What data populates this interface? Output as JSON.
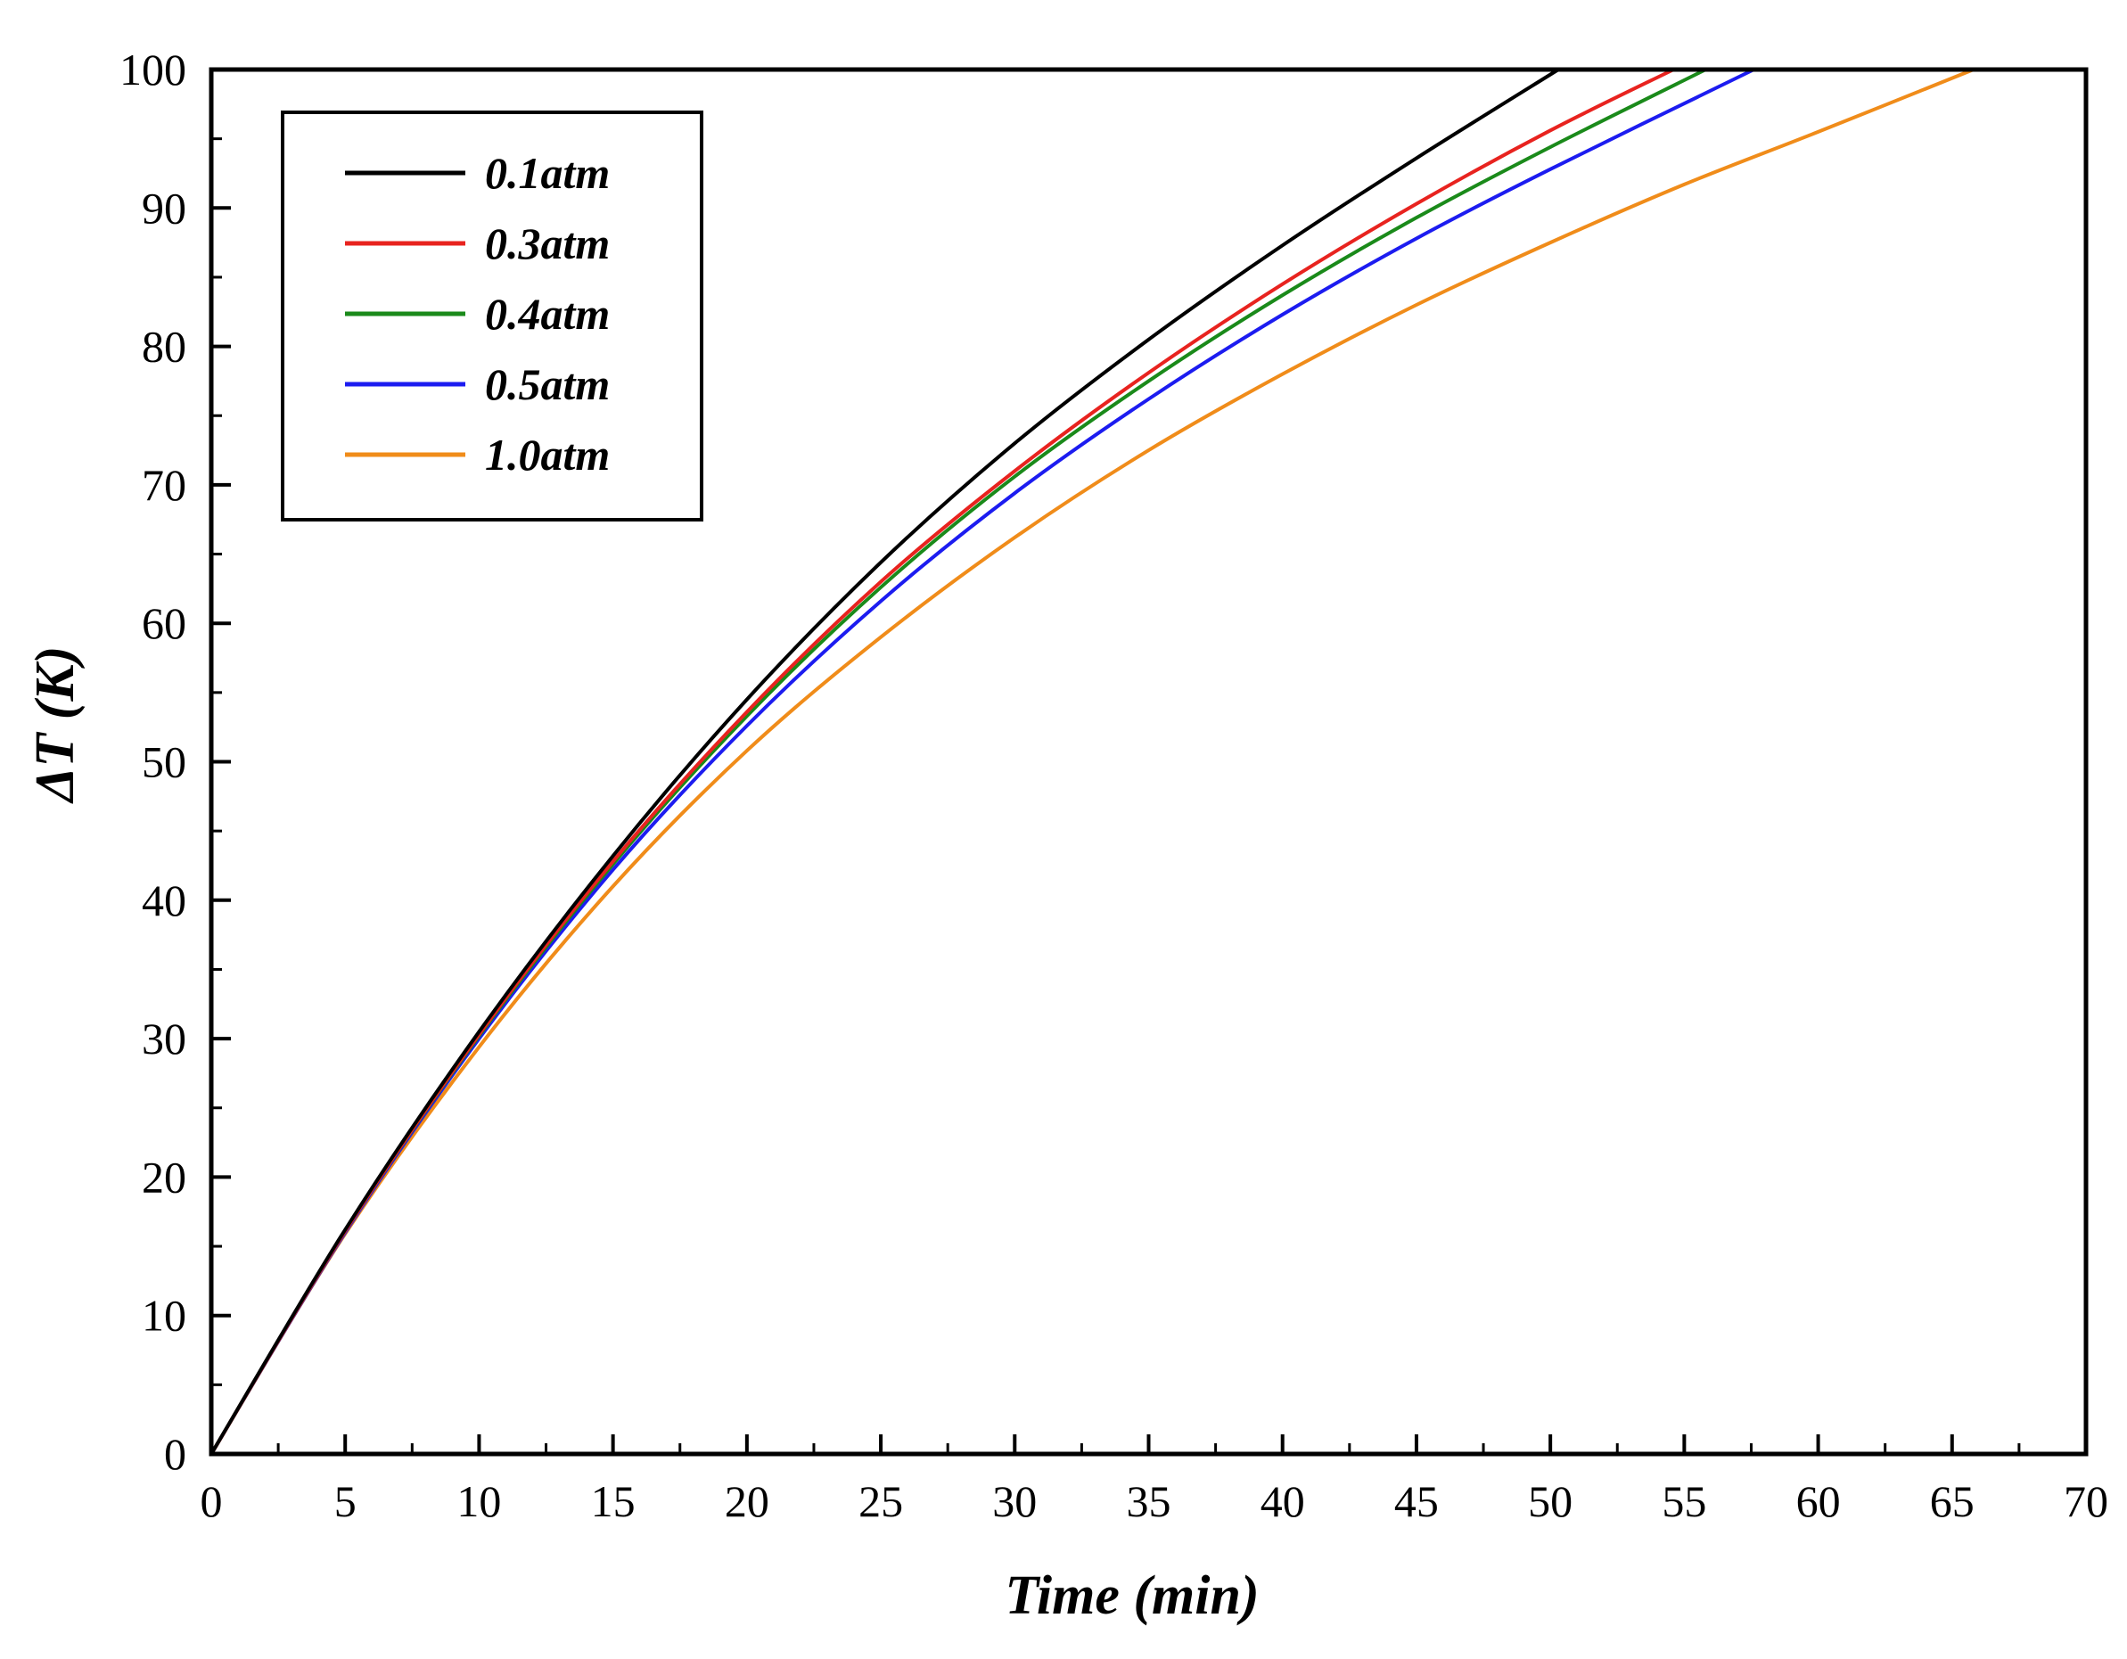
{
  "chart_data": {
    "type": "line",
    "title": "",
    "xlabel": "Time (min)",
    "ylabel": "ΔT (K)",
    "xlim": [
      0,
      70
    ],
    "ylim": [
      0,
      100
    ],
    "x_ticks": [
      0,
      5,
      10,
      15,
      20,
      25,
      30,
      35,
      40,
      45,
      50,
      55,
      60,
      65,
      70
    ],
    "y_ticks": [
      0,
      10,
      20,
      30,
      40,
      50,
      60,
      70,
      80,
      90,
      100
    ],
    "grid": false,
    "legend_position": "top-left",
    "series": [
      {
        "name": "0.1atm",
        "color": "#000000",
        "x": [
          0,
          5,
          10,
          15,
          20,
          25,
          30,
          35,
          40,
          45,
          50.3
        ],
        "y": [
          0,
          16.2,
          30.5,
          43.2,
          54.5,
          64.4,
          73.0,
          80.5,
          87.3,
          93.6,
          100
        ]
      },
      {
        "name": "0.3atm",
        "color": "#e8231f",
        "x": [
          0,
          5,
          10,
          15,
          20,
          25,
          30,
          35,
          40,
          45,
          50,
          54.6
        ],
        "y": [
          0,
          16.1,
          30.3,
          42.8,
          53.6,
          63.0,
          71.0,
          78.1,
          84.5,
          90.3,
          95.6,
          100
        ]
      },
      {
        "name": "0.4atm",
        "color": "#1a8a1a",
        "x": [
          0,
          5,
          10,
          15,
          20,
          25,
          30,
          35,
          40,
          45,
          50,
          55.8
        ],
        "y": [
          0,
          16.1,
          30.2,
          42.6,
          53.3,
          62.6,
          70.6,
          77.5,
          83.7,
          89.3,
          94.4,
          100
        ]
      },
      {
        "name": "0.5atm",
        "color": "#1c1cf0",
        "x": [
          0,
          5,
          10,
          15,
          20,
          25,
          30,
          35,
          40,
          45,
          50,
          57.6
        ],
        "y": [
          0,
          16.0,
          30.0,
          42.2,
          52.6,
          61.6,
          69.4,
          76.2,
          82.3,
          87.8,
          92.8,
          100
        ]
      },
      {
        "name": "1.0atm",
        "color": "#f08c1a",
        "x": [
          0,
          5,
          10,
          15,
          20,
          25,
          30,
          35,
          40,
          45,
          50,
          55,
          60,
          65.8
        ],
        "y": [
          0,
          15.9,
          29.4,
          41.0,
          50.8,
          59.0,
          66.2,
          72.5,
          78.0,
          83.0,
          87.5,
          91.7,
          95.5,
          100
        ]
      }
    ]
  }
}
